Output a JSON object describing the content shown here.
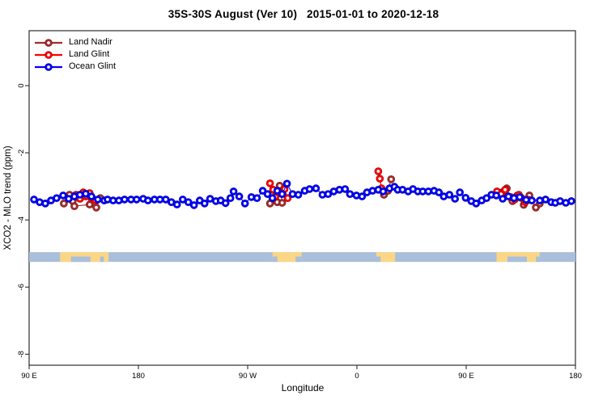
{
  "title": "35S-30S August (Ver 10)   2015-01-01 to 2020-12-18",
  "axes": {
    "x": {
      "label": "Longitude",
      "ticks": [
        {
          "deg": 0,
          "label": "90 E"
        },
        {
          "deg": 90,
          "label": "180"
        },
        {
          "deg": 180,
          "label": "90 W"
        },
        {
          "deg": 270,
          "label": "0"
        },
        {
          "deg": 360,
          "label": "90 E"
        },
        {
          "deg": 450,
          "label": "180"
        }
      ]
    },
    "y": {
      "label": "XCO2 - MLO trend (ppm)",
      "ticks": [
        {
          "value": 0,
          "label": "0"
        },
        {
          "value": -2,
          "label": "-2"
        },
        {
          "value": -4,
          "label": "-4"
        },
        {
          "value": -6,
          "label": "-6"
        },
        {
          "value": -8,
          "label": "-8"
        }
      ]
    }
  },
  "legend": {
    "items": [
      {
        "label": "Land Nadir"
      },
      {
        "label": "Land Glint"
      },
      {
        "label": "Ocean Glint"
      }
    ]
  },
  "colors": {
    "frame": "#2e2e2e",
    "map_ocean": "#a9bfdb",
    "map_land": "#fbd687"
  },
  "map_strip": {
    "y_from_ppm": -4.96,
    "y_to_ppm": -5.25,
    "land_patches": [
      {
        "from": 25.5,
        "to": 65.5,
        "notches": [
          [
            34.5,
            50.5
          ],
          [
            58.5,
            61.5
          ]
        ]
      },
      {
        "from": 200.5,
        "to": 224.5,
        "notches": [
          [
            200.5,
            204.5
          ],
          [
            219.5,
            224.5
          ]
        ]
      },
      {
        "from": 286.0,
        "to": 301.5,
        "notches": [
          [
            286.0,
            289.5
          ]
        ]
      },
      {
        "from": 385.0,
        "to": 420.5,
        "notches": [
          [
            394.0,
            410.0
          ],
          [
            417.5,
            420.5
          ]
        ]
      }
    ]
  },
  "chart_data": {
    "type": "scatter",
    "title": "35S-30S August (Ver 10)   2015-01-01 to 2020-12-18",
    "xlabel": "Longitude",
    "ylabel": "XCO2 - MLO trend (ppm)",
    "ylim": [
      -8.4,
      1.6
    ],
    "x_unit": "degrees along axis from left edge; axis reads 90E, 180, 90W, 0, 90E, 180 (450 deg span)",
    "legend_position": "top-left",
    "grid": false,
    "series": [
      {
        "id": "land-nadir",
        "name": "Land Nadir",
        "color": "#a52a2a",
        "edge": "#581111",
        "connect_gap_deg": 15,
        "points": [
          [
            28.6,
            -3.51
          ],
          [
            33.3,
            -3.25
          ],
          [
            35.9,
            -3.44
          ],
          [
            37.3,
            -3.59
          ],
          [
            49.9,
            -3.54
          ],
          [
            55.3,
            -3.63
          ],
          [
            58.6,
            -3.35
          ],
          [
            198.4,
            -3.51
          ],
          [
            204.4,
            -3.47
          ],
          [
            206.4,
            -2.98
          ],
          [
            208.4,
            -3.49
          ],
          [
            292.3,
            -3.25
          ],
          [
            295.6,
            -3.13
          ],
          [
            298.2,
            -2.79
          ],
          [
            389.5,
            -3.18
          ],
          [
            393.4,
            -3.06
          ],
          [
            398.1,
            -3.44
          ],
          [
            402.1,
            -3.27
          ],
          [
            407.4,
            -3.55
          ],
          [
            412.1,
            -3.27
          ],
          [
            417.4,
            -3.63
          ],
          [
            420.7,
            -3.51
          ]
        ]
      },
      {
        "id": "land-glint",
        "name": "Land Glint",
        "color": "#ff0000",
        "edge": "#7e0000",
        "connect_gap_deg": 15,
        "points": [
          [
            38.6,
            -3.25
          ],
          [
            41.9,
            -3.37
          ],
          [
            44.6,
            -3.18
          ],
          [
            46.6,
            -3.3
          ],
          [
            49.9,
            -3.2
          ],
          [
            51.3,
            -3.35
          ],
          [
            54.6,
            -3.42
          ],
          [
            198.4,
            -2.91
          ],
          [
            201.0,
            -3.1
          ],
          [
            203.0,
            -3.3
          ],
          [
            205.0,
            -3.18
          ],
          [
            208.4,
            -3.23
          ],
          [
            210.4,
            -3.08
          ],
          [
            213.0,
            -3.35
          ],
          [
            287.6,
            -2.55
          ],
          [
            288.9,
            -2.77
          ],
          [
            290.3,
            -3.06
          ],
          [
            385.4,
            -3.15
          ],
          [
            388.8,
            -3.23
          ],
          [
            392.1,
            -3.1
          ],
          [
            396.8,
            -3.32
          ],
          [
            400.1,
            -3.39
          ],
          [
            403.4,
            -3.25
          ],
          [
            405.4,
            -3.34
          ],
          [
            408.7,
            -3.47
          ],
          [
            411.4,
            -3.4
          ]
        ]
      },
      {
        "id": "ocean-glint",
        "name": "Ocean Glint",
        "color": "#0000ff",
        "edge": "#000078",
        "connect_gap_deg": 999,
        "points": [
          [
            4.0,
            -3.39
          ],
          [
            8.7,
            -3.47
          ],
          [
            13.3,
            -3.51
          ],
          [
            18.0,
            -3.42
          ],
          [
            22.6,
            -3.35
          ],
          [
            28.0,
            -3.27
          ],
          [
            32.6,
            -3.37
          ],
          [
            37.3,
            -3.3
          ],
          [
            41.9,
            -3.25
          ],
          [
            46.6,
            -3.22
          ],
          [
            51.3,
            -3.3
          ],
          [
            56.6,
            -3.39
          ],
          [
            61.9,
            -3.42
          ],
          [
            64.6,
            -3.39
          ],
          [
            69.2,
            -3.42
          ],
          [
            73.9,
            -3.42
          ],
          [
            78.6,
            -3.39
          ],
          [
            83.9,
            -3.39
          ],
          [
            88.5,
            -3.39
          ],
          [
            93.9,
            -3.37
          ],
          [
            97.9,
            -3.42
          ],
          [
            103.2,
            -3.39
          ],
          [
            107.8,
            -3.39
          ],
          [
            112.5,
            -3.39
          ],
          [
            117.2,
            -3.47
          ],
          [
            121.8,
            -3.54
          ],
          [
            126.5,
            -3.39
          ],
          [
            131.1,
            -3.47
          ],
          [
            135.8,
            -3.56
          ],
          [
            140.5,
            -3.42
          ],
          [
            144.5,
            -3.51
          ],
          [
            149.1,
            -3.37
          ],
          [
            153.8,
            -3.44
          ],
          [
            157.8,
            -3.42
          ],
          [
            161.8,
            -3.5
          ],
          [
            165.8,
            -3.35
          ],
          [
            168.4,
            -3.15
          ],
          [
            173.1,
            -3.3
          ],
          [
            177.8,
            -3.51
          ],
          [
            183.1,
            -3.32
          ],
          [
            187.7,
            -3.35
          ],
          [
            192.4,
            -3.13
          ],
          [
            196.4,
            -3.23
          ],
          [
            200.4,
            -3.35
          ],
          [
            204.4,
            -3.13
          ],
          [
            208.4,
            -3.23
          ],
          [
            212.4,
            -2.92
          ],
          [
            217.0,
            -3.23
          ],
          [
            221.7,
            -3.25
          ],
          [
            227.0,
            -3.13
          ],
          [
            231.0,
            -3.08
          ],
          [
            236.3,
            -3.06
          ],
          [
            241.6,
            -3.25
          ],
          [
            246.3,
            -3.23
          ],
          [
            250.9,
            -3.15
          ],
          [
            255.6,
            -3.1
          ],
          [
            260.3,
            -3.08
          ],
          [
            264.3,
            -3.23
          ],
          [
            269.6,
            -3.27
          ],
          [
            274.3,
            -3.3
          ],
          [
            278.3,
            -3.18
          ],
          [
            282.9,
            -3.13
          ],
          [
            287.6,
            -3.1
          ],
          [
            291.6,
            -3.15
          ],
          [
            296.9,
            -3.06
          ],
          [
            300.9,
            -3.01
          ],
          [
            303.6,
            -3.1
          ],
          [
            307.6,
            -3.1
          ],
          [
            312.2,
            -3.15
          ],
          [
            316.2,
            -3.08
          ],
          [
            320.2,
            -3.15
          ],
          [
            324.2,
            -3.15
          ],
          [
            328.9,
            -3.15
          ],
          [
            333.5,
            -3.13
          ],
          [
            337.5,
            -3.18
          ],
          [
            341.5,
            -3.3
          ],
          [
            346.2,
            -3.25
          ],
          [
            350.8,
            -3.37
          ],
          [
            354.8,
            -3.18
          ],
          [
            359.5,
            -3.34
          ],
          [
            364.2,
            -3.44
          ],
          [
            368.2,
            -3.51
          ],
          [
            372.8,
            -3.42
          ],
          [
            376.8,
            -3.35
          ],
          [
            380.8,
            -3.25
          ],
          [
            384.8,
            -3.27
          ],
          [
            390.1,
            -3.37
          ],
          [
            394.8,
            -3.3
          ],
          [
            399.4,
            -3.35
          ],
          [
            404.1,
            -3.32
          ],
          [
            409.4,
            -3.4
          ],
          [
            414.1,
            -3.42
          ],
          [
            420.7,
            -3.42
          ],
          [
            425.4,
            -3.39
          ],
          [
            430.1,
            -3.47
          ],
          [
            433.4,
            -3.49
          ],
          [
            437.4,
            -3.44
          ],
          [
            442.1,
            -3.49
          ],
          [
            446.7,
            -3.44
          ]
        ]
      }
    ]
  }
}
